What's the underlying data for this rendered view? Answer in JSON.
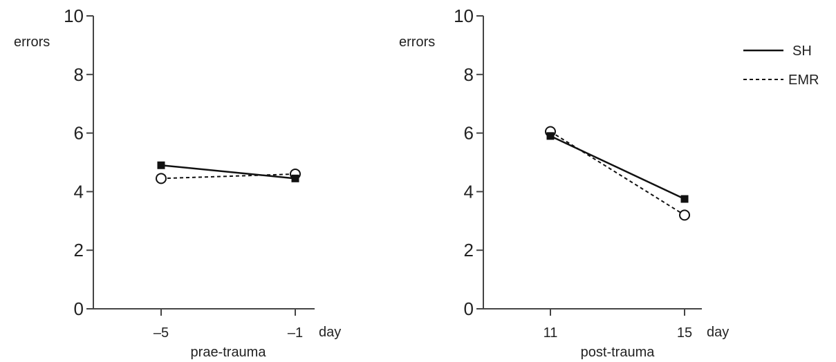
{
  "chart_data": [
    {
      "type": "line",
      "ylabel": "errors",
      "xlabel": "prae-trauma",
      "x_unit_label": "day",
      "x": [
        -5,
        -1
      ],
      "x_tick_labels": [
        "–5",
        "–1"
      ],
      "ylim": [
        0,
        10
      ],
      "y_ticks": [
        0,
        2,
        4,
        6,
        8,
        10
      ],
      "series": [
        {
          "name": "SH",
          "values": [
            4.9,
            4.45
          ],
          "line": "solid",
          "marker": "filled-square"
        },
        {
          "name": "EMR",
          "values": [
            4.45,
            4.6
          ],
          "line": "dashed",
          "marker": "open-circle"
        }
      ]
    },
    {
      "type": "line",
      "ylabel": "errors",
      "xlabel": "post-trauma",
      "x_unit_label": "day",
      "x": [
        11,
        15
      ],
      "x_tick_labels": [
        "11",
        "15"
      ],
      "ylim": [
        0,
        10
      ],
      "y_ticks": [
        0,
        2,
        4,
        6,
        8,
        10
      ],
      "series": [
        {
          "name": "SH",
          "values": [
            5.9,
            3.75
          ],
          "line": "solid",
          "marker": "filled-square"
        },
        {
          "name": "EMR",
          "values": [
            6.05,
            3.2
          ],
          "line": "dashed",
          "marker": "open-circle"
        }
      ]
    }
  ],
  "legend": {
    "placement": "top-right",
    "items": [
      {
        "label": "SH",
        "line": "solid"
      },
      {
        "label": "EMR",
        "line": "dashed"
      }
    ]
  },
  "colors": {
    "line": "#111111",
    "axis": "#444444",
    "text": "#222222"
  }
}
